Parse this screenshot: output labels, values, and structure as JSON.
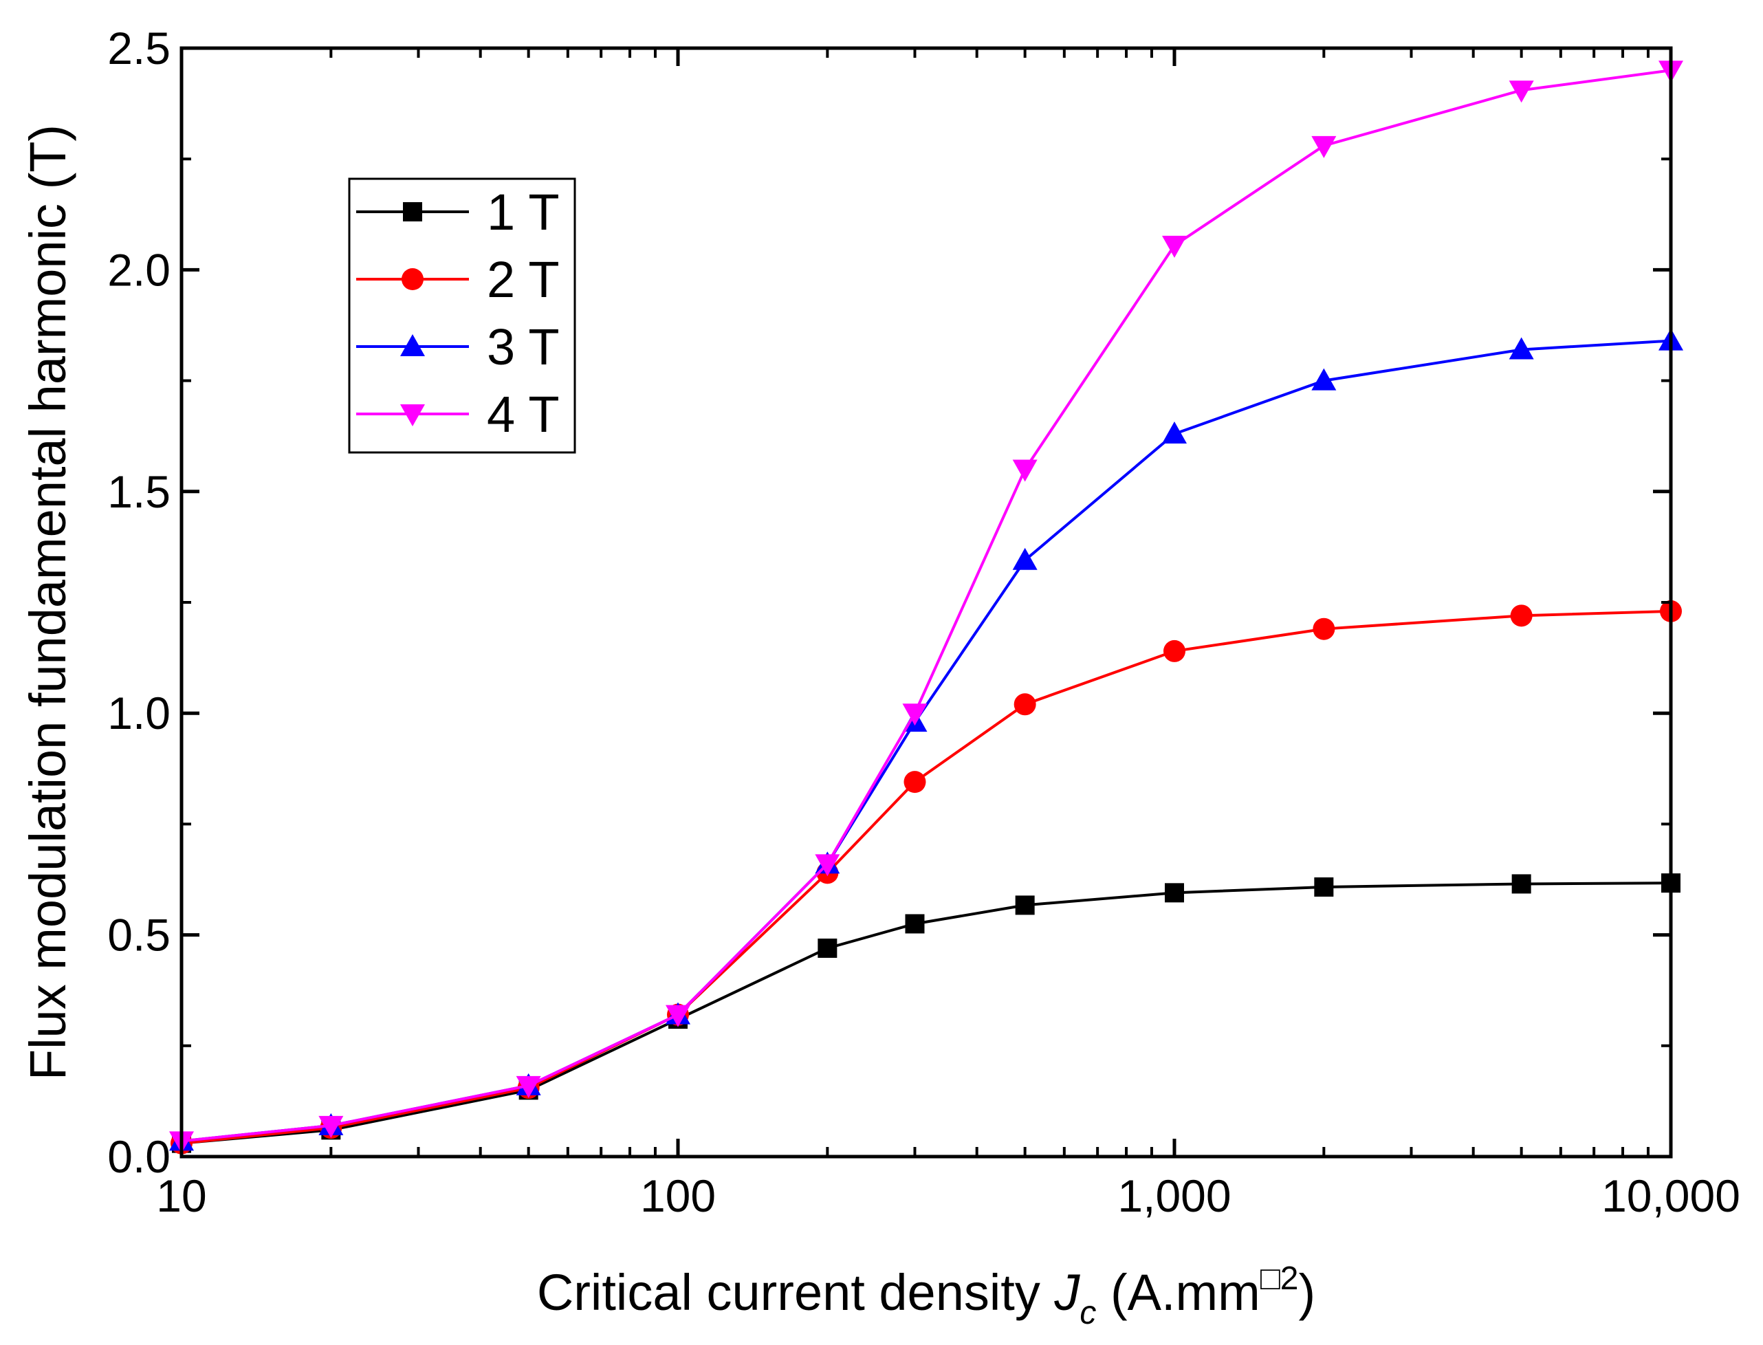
{
  "chart_data": {
    "type": "line",
    "title": "",
    "xlabel": {
      "prefix": "Critical current density ",
      "symbol": "J",
      "subscript": "c",
      "unit_open": " (A.mm",
      "superscript": "□2",
      "unit_close": ")"
    },
    "ylabel": "Flux modulation fundamental harmonic (T)",
    "xscale": "log",
    "xlim": [
      10,
      10000
    ],
    "ylim": [
      0.0,
      2.5
    ],
    "x_ticks": [
      10,
      100,
      1000,
      10000
    ],
    "x_tick_labels": [
      "10",
      "100",
      "1,000",
      "10,000"
    ],
    "y_ticks": [
      0.0,
      0.5,
      1.0,
      1.5,
      2.0,
      2.5
    ],
    "y_tick_labels": [
      "0.0",
      "0.5",
      "1.0",
      "1.5",
      "2.0",
      "2.5"
    ],
    "x": [
      10,
      20,
      50,
      100,
      200,
      300,
      500,
      1000,
      2000,
      5000,
      10000
    ],
    "legend_position": "top-left",
    "series": [
      {
        "name": "1 T",
        "color": "#000000",
        "marker": "square",
        "values": [
          0.03,
          0.06,
          0.15,
          0.31,
          0.47,
          0.525,
          0.567,
          0.595,
          0.608,
          0.615,
          0.617
        ]
      },
      {
        "name": "2 T",
        "color": "#ff0000",
        "marker": "circle",
        "values": [
          0.03,
          0.065,
          0.155,
          0.32,
          0.64,
          0.845,
          1.02,
          1.14,
          1.19,
          1.22,
          1.23
        ]
      },
      {
        "name": "3 T",
        "color": "#0000ff",
        "marker": "triangle-up",
        "values": [
          0.035,
          0.07,
          0.16,
          0.32,
          0.66,
          0.98,
          1.345,
          1.63,
          1.75,
          1.82,
          1.84
        ]
      },
      {
        "name": "4 T",
        "color": "#ff00ff",
        "marker": "triangle-down",
        "values": [
          0.035,
          0.07,
          0.16,
          0.32,
          0.66,
          1.0,
          1.55,
          2.055,
          2.28,
          2.405,
          2.45
        ]
      }
    ]
  }
}
